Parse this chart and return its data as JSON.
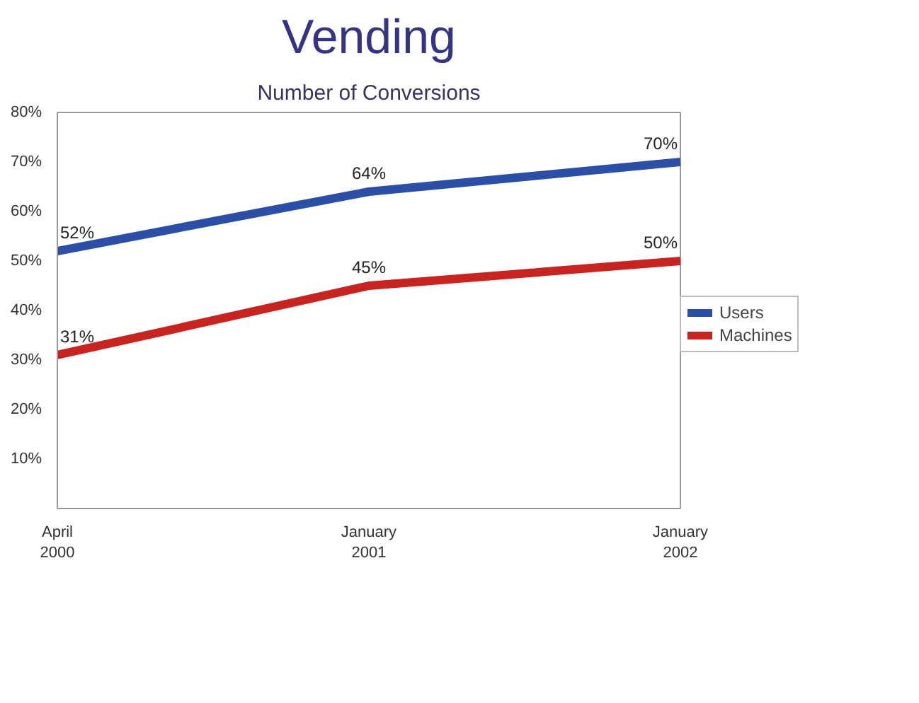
{
  "chart_data": {
    "type": "line",
    "title": "Vending",
    "subtitle": "Number of Conversions",
    "categories": [
      "April\n2000",
      "January\n2001",
      "January\n2002"
    ],
    "series": [
      {
        "name": "Users",
        "color": "#2b4ea6",
        "values": [
          52,
          64,
          70
        ],
        "value_labels": [
          "52%",
          "64%",
          "70%"
        ]
      },
      {
        "name": "Machines",
        "color": "#c8231e",
        "values": [
          31,
          45,
          50
        ],
        "value_labels": [
          "31%",
          "45%",
          "50%"
        ]
      }
    ],
    "ylim": [
      0,
      80
    ],
    "yticks": [
      {
        "value": 10,
        "label": "10%"
      },
      {
        "value": 20,
        "label": "20%"
      },
      {
        "value": 30,
        "label": "30%"
      },
      {
        "value": 40,
        "label": "40%"
      },
      {
        "value": 50,
        "label": "50%"
      },
      {
        "value": 60,
        "label": "60%"
      },
      {
        "value": 70,
        "label": "70%"
      },
      {
        "value": 80,
        "label": "80%"
      }
    ],
    "grid": false,
    "legend": "right",
    "marker": "none",
    "line_style": "solid"
  }
}
